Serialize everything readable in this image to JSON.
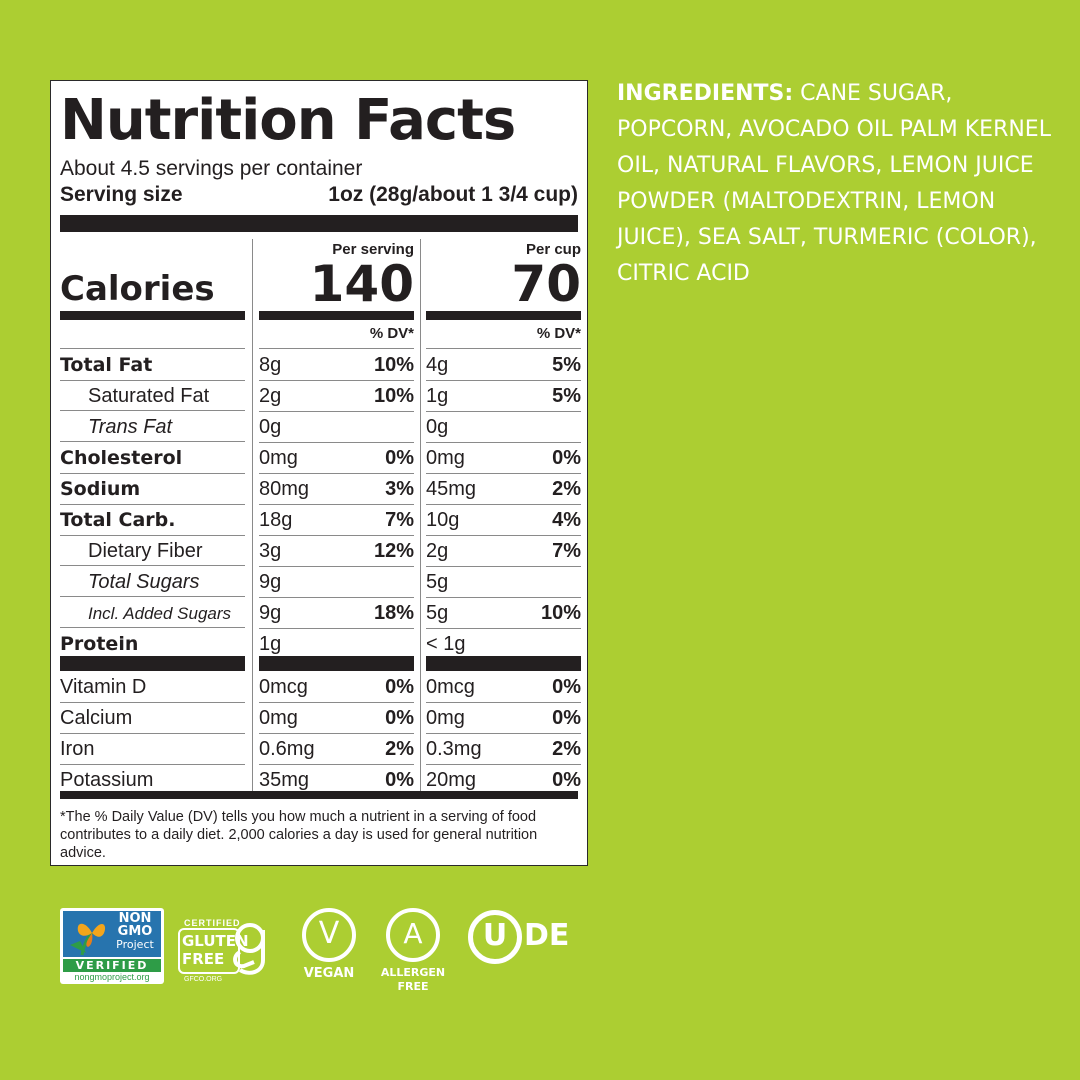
{
  "colors": {
    "background": "#acce32",
    "panel": "#ffffff",
    "text": "#231f20",
    "ingredients": "#ffffff"
  },
  "label": {
    "title": "Nutrition Facts",
    "servings": "About 4.5 servings per container",
    "serving_size_label": "Serving size",
    "serving_size_value": "1oz (28g/about 1 3/4 cup)",
    "calories_label": "Calories",
    "col1_header": "Per serving",
    "col2_header": "Per cup",
    "calories_col1": "140",
    "calories_col2": "70",
    "dv_header": "% DV*",
    "nutrients": [
      {
        "name": "Total Fat",
        "a1": "8g",
        "p1": "10%",
        "a2": "4g",
        "p2": "5%"
      },
      {
        "name": "Saturated Fat",
        "a1": "2g",
        "p1": "10%",
        "a2": "1g",
        "p2": "5%"
      },
      {
        "name": "Trans Fat",
        "a1": "0g",
        "p1": "",
        "a2": "0g",
        "p2": ""
      },
      {
        "name": "Cholesterol",
        "a1": "0mg",
        "p1": "0%",
        "a2": "0mg",
        "p2": "0%"
      },
      {
        "name": "Sodium",
        "a1": "80mg",
        "p1": "3%",
        "a2": "45mg",
        "p2": "2%"
      },
      {
        "name": "Total Carb.",
        "a1": "18g",
        "p1": "7%",
        "a2": "10g",
        "p2": "4%"
      },
      {
        "name": "Dietary Fiber",
        "a1": "3g",
        "p1": "12%",
        "a2": "2g",
        "p2": "7%"
      },
      {
        "name": "Total Sugars",
        "a1": "9g",
        "p1": "",
        "a2": "5g",
        "p2": ""
      },
      {
        "name": "Incl. Added Sugars",
        "a1": "9g",
        "p1": "18%",
        "a2": "5g",
        "p2": "10%"
      },
      {
        "name": "Protein",
        "a1": "1g",
        "p1": "",
        "a2": "< 1g",
        "p2": ""
      }
    ],
    "vitamins": [
      {
        "name": "Vitamin D",
        "a1": "0mcg",
        "p1": "0%",
        "a2": "0mcg",
        "p2": "0%"
      },
      {
        "name": "Calcium",
        "a1": "0mg",
        "p1": "0%",
        "a2": "0mg",
        "p2": "0%"
      },
      {
        "name": "Iron",
        "a1": "0.6mg",
        "p1": "2%",
        "a2": "0.3mg",
        "p2": "2%"
      },
      {
        "name": "Potassium",
        "a1": "35mg",
        "p1": "0%",
        "a2": "20mg",
        "p2": "0%"
      }
    ],
    "footnote": "*The % Daily Value (DV) tells you how much a nutrient in a serving of food contributes to a daily diet. 2,000 calories a day is used for general nutrition advice."
  },
  "ingredients": {
    "heading": "INGREDIENTS:",
    "text": "CANE SUGAR, POPCORN, AVOCADO OIL PALM KERNEL OIL, NATURAL FLAVORS, LEMON JUICE POWDER (MALTODEXTRIN, LEMON JUICE), SEA SALT, TURMERIC (COLOR), CITRIC ACID"
  },
  "certifications": {
    "nongmo": {
      "line1": "NON",
      "line2": "GMO",
      "line3": "Project",
      "verified": "VERIFIED",
      "url": "nongmoproject.org",
      "icon": "butterfly-icon"
    },
    "gluten": {
      "certified": "CERTIFIED",
      "line1": "GLUTEN",
      "line2": "FREE",
      "url": "GFCO.ORG",
      "icon": "gfco-g-icon"
    },
    "vegan": {
      "mark": "V",
      "label": "VEGAN",
      "icon": "vegan-v-icon"
    },
    "allergen": {
      "mark": "A",
      "line1": "ALLERGEN",
      "line2": "FREE",
      "icon": "allergen-a-icon"
    },
    "kosher": {
      "mark": "U",
      "suffix": "DE",
      "icon": "ou-kosher-icon"
    }
  }
}
